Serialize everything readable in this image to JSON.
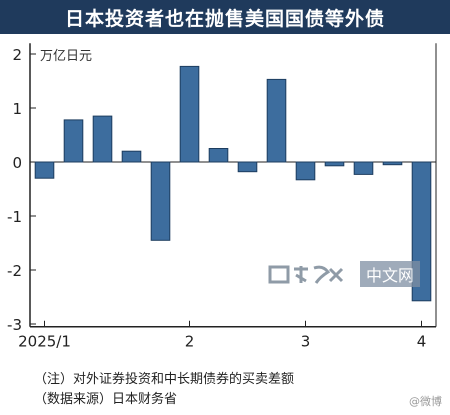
{
  "chart_data": {
    "type": "bar",
    "title": "日本投资者也在抛售美国国债等外债",
    "unit": "万亿日元",
    "x": [
      1,
      2,
      3,
      4,
      5,
      6,
      7,
      8,
      9,
      10,
      11,
      12,
      13,
      14
    ],
    "values": [
      -0.3,
      0.78,
      0.85,
      0.2,
      -1.45,
      1.77,
      0.25,
      -0.18,
      1.53,
      -0.33,
      -0.07,
      -0.23,
      -0.05,
      -2.57
    ],
    "x_tick_labels": [
      {
        "label": "2025/1",
        "index": 1
      },
      {
        "label": "2",
        "index": 6
      },
      {
        "label": "3",
        "index": 10
      },
      {
        "label": "4",
        "index": 14
      }
    ],
    "y_ticks": [
      2,
      1,
      0,
      -1,
      -2,
      -3
    ],
    "ylim": [
      -3.05,
      2.2
    ],
    "bar_color": "#3d6d9e",
    "grid": false
  },
  "notes": {
    "note1": "（注）对外证券投资和中长期债券的买卖差额",
    "note2": "（数据来源）日本财务省"
  },
  "watermark": {
    "text": "中文网"
  }
}
